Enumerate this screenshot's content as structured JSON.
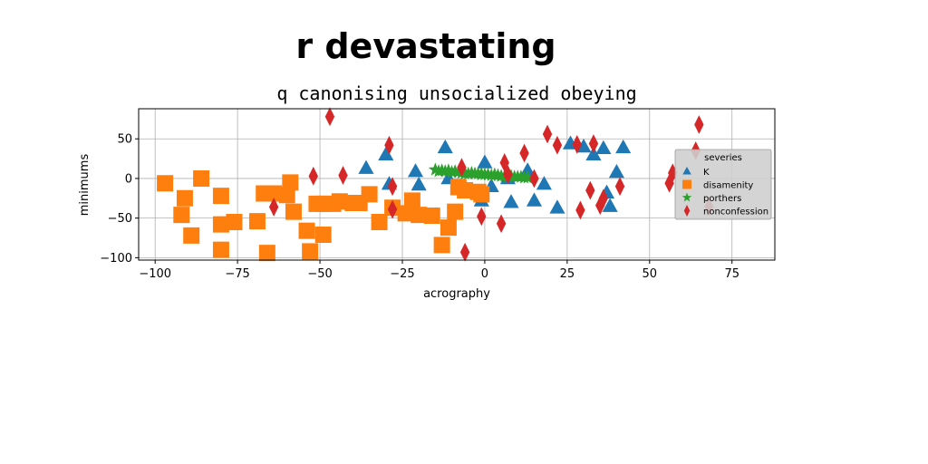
{
  "chart_data": {
    "type": "scatter",
    "suptitle": "r devastating",
    "title": "q canonising unsocialized obeying",
    "xlabel": "acrography",
    "ylabel": "minimums",
    "xlim": [
      -105,
      88
    ],
    "ylim": [
      -103,
      88
    ],
    "xticks": [
      -100,
      -75,
      -50,
      -25,
      0,
      25,
      50,
      75
    ],
    "yticks": [
      -100,
      -50,
      0,
      50
    ],
    "grid": true,
    "legend": {
      "title": "severies",
      "placement": "right",
      "entries": [
        "K",
        "disamenity",
        "porthers",
        "nonconfession"
      ]
    },
    "series": [
      {
        "name": "K",
        "marker": "triangle",
        "color": "#1f77b4",
        "points": [
          [
            -12,
            39
          ],
          [
            -30,
            30
          ],
          [
            -36,
            13
          ],
          [
            -29,
            -7
          ],
          [
            -21,
            9
          ],
          [
            -20,
            -8
          ],
          [
            -11,
            0
          ],
          [
            0,
            20
          ],
          [
            -1,
            -28
          ],
          [
            2,
            -10
          ],
          [
            7,
            0
          ],
          [
            8,
            -30
          ],
          [
            13,
            10
          ],
          [
            15,
            -28
          ],
          [
            18,
            -7
          ],
          [
            22,
            -37
          ],
          [
            26,
            44
          ],
          [
            30,
            40
          ],
          [
            33,
            30
          ],
          [
            36,
            38
          ],
          [
            37,
            -18
          ],
          [
            38,
            -35
          ],
          [
            40,
            8
          ],
          [
            42,
            39
          ]
        ]
      },
      {
        "name": "disamenity",
        "marker": "square",
        "color": "#ff7f0e",
        "points": [
          [
            -97,
            -6
          ],
          [
            -91,
            -25
          ],
          [
            -92,
            -46
          ],
          [
            -89,
            -72
          ],
          [
            -86,
            0
          ],
          [
            -80,
            -22
          ],
          [
            -80,
            -58
          ],
          [
            -80,
            -90
          ],
          [
            -76,
            -55
          ],
          [
            -69,
            -54
          ],
          [
            -67,
            -19
          ],
          [
            -66,
            -94
          ],
          [
            -64,
            -19
          ],
          [
            -60,
            -21
          ],
          [
            -59,
            -5
          ],
          [
            -58,
            -42
          ],
          [
            -54,
            -66
          ],
          [
            -53,
            -92
          ],
          [
            -51,
            -32
          ],
          [
            -49,
            -71
          ],
          [
            -49,
            -32
          ],
          [
            -46,
            -32
          ],
          [
            -44,
            -29
          ],
          [
            -40,
            -31
          ],
          [
            -38,
            -31
          ],
          [
            -35,
            -20
          ],
          [
            -32,
            -55
          ],
          [
            -28,
            -37
          ],
          [
            -24,
            -44
          ],
          [
            -22,
            -28
          ],
          [
            -20,
            -46
          ],
          [
            -16,
            -47
          ],
          [
            -13,
            -84
          ],
          [
            -11,
            -62
          ],
          [
            -9,
            -42
          ],
          [
            -8,
            -11
          ],
          [
            -6,
            -15
          ],
          [
            -2,
            -17
          ],
          [
            -1,
            -20
          ]
        ]
      },
      {
        "name": "porthers",
        "marker": "star",
        "color": "#2ca02c",
        "points": [
          [
            -15,
            11
          ],
          [
            -13,
            10
          ],
          [
            -12,
            9
          ],
          [
            -10,
            8
          ],
          [
            -9,
            9
          ],
          [
            -8,
            8
          ],
          [
            -7,
            7
          ],
          [
            -6,
            7
          ],
          [
            -5,
            6
          ],
          [
            -4,
            7
          ],
          [
            -3,
            6
          ],
          [
            -2,
            6
          ],
          [
            -1,
            5
          ],
          [
            0,
            5
          ],
          [
            1,
            5
          ],
          [
            2,
            4
          ],
          [
            3,
            4
          ],
          [
            4,
            4
          ],
          [
            5,
            3
          ],
          [
            6,
            3
          ],
          [
            7,
            3
          ],
          [
            8,
            3
          ],
          [
            9,
            2
          ],
          [
            10,
            2
          ],
          [
            11,
            2
          ],
          [
            12,
            1
          ],
          [
            13,
            1
          ],
          [
            -14,
            9
          ],
          [
            -11,
            10
          ],
          [
            -6,
            6
          ],
          [
            -1,
            6
          ],
          [
            3,
            5
          ],
          [
            7,
            2
          ]
        ]
      },
      {
        "name": "nonconfession",
        "marker": "diamond",
        "color": "#d62728",
        "points": [
          [
            -47,
            78
          ],
          [
            -52,
            3
          ],
          [
            -43,
            4
          ],
          [
            -64,
            -36
          ],
          [
            -29,
            42
          ],
          [
            -28,
            -10
          ],
          [
            -28,
            -39
          ],
          [
            -7,
            14
          ],
          [
            -6,
            -93
          ],
          [
            -1,
            -48
          ],
          [
            5,
            -57
          ],
          [
            6,
            20
          ],
          [
            7,
            5
          ],
          [
            12,
            32
          ],
          [
            15,
            0
          ],
          [
            19,
            56
          ],
          [
            22,
            42
          ],
          [
            28,
            43
          ],
          [
            29,
            -40
          ],
          [
            32,
            -15
          ],
          [
            33,
            44
          ],
          [
            35,
            -34
          ],
          [
            36,
            -25
          ],
          [
            41,
            -10
          ],
          [
            56,
            -6
          ],
          [
            57,
            7
          ],
          [
            64,
            35
          ],
          [
            65,
            68
          ],
          [
            68,
            -36
          ]
        ]
      }
    ]
  }
}
